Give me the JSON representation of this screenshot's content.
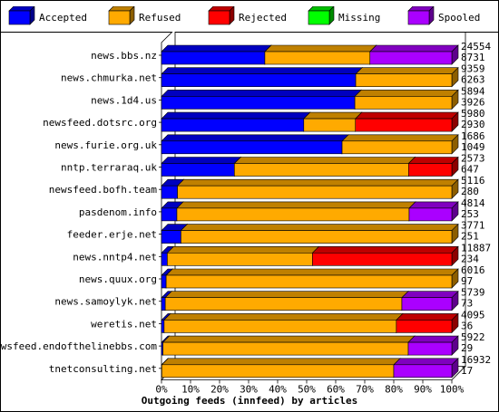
{
  "legend": [
    {
      "name": "Accepted",
      "color": "#0000ff"
    },
    {
      "name": "Refused",
      "color": "#ffaa00"
    },
    {
      "name": "Rejected",
      "color": "#ff0000"
    },
    {
      "name": "Missing",
      "color": "#00ff00"
    },
    {
      "name": "Spooled",
      "color": "#aa00ff"
    }
  ],
  "chart_data": {
    "type": "bar",
    "orientation": "horizontal",
    "stacked": true,
    "normalized": true,
    "title": "",
    "xlabel": "Outgoing feeds (innfeed) by articles",
    "ylabel": "",
    "xlim": [
      0,
      100
    ],
    "x_ticks": [
      "0%",
      "10%",
      "20%",
      "30%",
      "40%",
      "50%",
      "60%",
      "70%",
      "80%",
      "90%",
      "100%"
    ],
    "categories": [
      "news.bbs.nz",
      "news.chmurka.net",
      "news.1d4.us",
      "newsfeed.dotsrc.org",
      "news.furie.org.uk",
      "nntp.terraraq.uk",
      "newsfeed.bofh.team",
      "pasdenom.info",
      "feeder.erje.net",
      "news.nntp4.net",
      "news.quux.org",
      "news.samoylyk.net",
      "weretis.net",
      "newsfeed.endofthelinebbs.com",
      "tnetconsulting.net"
    ],
    "totals": [
      "24554",
      "9359",
      "5894",
      "5980",
      "1686",
      "2573",
      "5116",
      "4814",
      "3771",
      "11887",
      "6016",
      "5739",
      "4095",
      "5922",
      "16932"
    ],
    "accepted_counts": [
      "8731",
      "6263",
      "3926",
      "2930",
      "1049",
      "647",
      "280",
      "253",
      "251",
      "234",
      "97",
      "73",
      "36",
      "29",
      "17"
    ],
    "series": [
      {
        "name": "Accepted",
        "color": "#0000ff",
        "values": [
          35.6,
          66.9,
          66.6,
          49.0,
          62.2,
          25.1,
          5.5,
          5.3,
          6.7,
          2.0,
          1.6,
          1.3,
          0.9,
          0.5,
          0.1
        ]
      },
      {
        "name": "Refused",
        "color": "#ffaa00",
        "values": [
          36.2,
          33.1,
          33.4,
          17.8,
          37.8,
          60.0,
          94.5,
          80.0,
          93.3,
          50.0,
          98.4,
          81.5,
          80.0,
          84.5,
          79.9
        ]
      },
      {
        "name": "Rejected",
        "color": "#ff0000",
        "values": [
          0,
          0,
          0,
          33.2,
          0,
          14.9,
          0,
          0,
          0,
          48.0,
          0,
          0,
          19.1,
          0,
          0
        ]
      },
      {
        "name": "Missing",
        "color": "#00ff00",
        "values": [
          0,
          0,
          0,
          0,
          0,
          0,
          0,
          0,
          0,
          0,
          0,
          0,
          0,
          0,
          0
        ]
      },
      {
        "name": "Spooled",
        "color": "#aa00ff",
        "values": [
          28.2,
          0,
          0,
          0,
          0,
          0,
          0,
          14.7,
          0,
          0,
          0,
          17.2,
          0,
          15.0,
          20.0
        ]
      }
    ],
    "grid": false,
    "legend_position": "top"
  }
}
